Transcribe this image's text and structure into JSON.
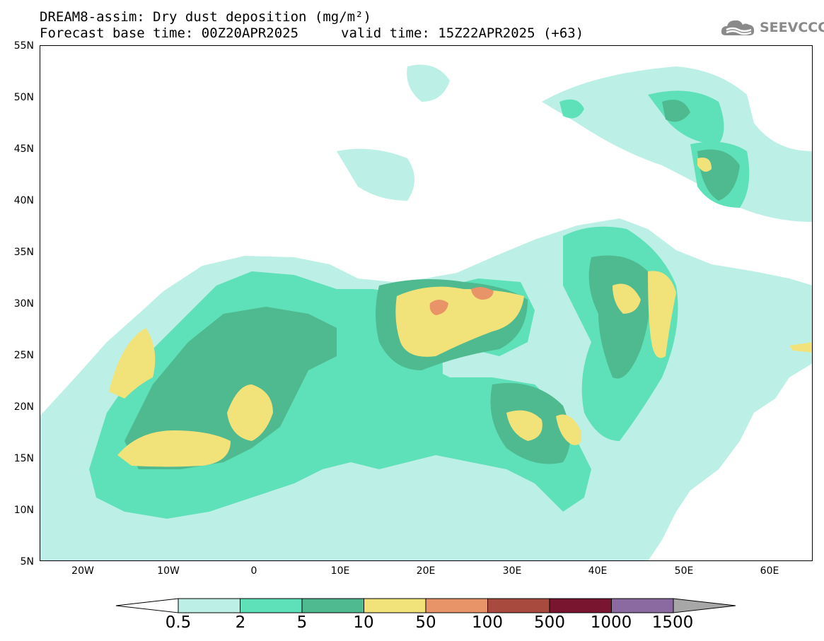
{
  "header": {
    "line1": "DREAM8-assim: Dry dust deposition (mg/m²)",
    "line2_base": "Forecast base time: 00Z20APR2025",
    "line2_valid": "valid time: 15Z22APR2025 (+63)"
  },
  "logo": {
    "text": "SEEVCCC",
    "icon": "cloud-icon"
  },
  "map": {
    "lat_labels": [
      "55N",
      "50N",
      "45N",
      "40N",
      "35N",
      "30N",
      "25N",
      "20N",
      "15N",
      "10N",
      "5N"
    ],
    "lon_labels": [
      "20W",
      "10W",
      "0",
      "10E",
      "20E",
      "30E",
      "40E",
      "50E",
      "60E"
    ],
    "extent": {
      "lon": [
        -25,
        65
      ],
      "lat": [
        5,
        55
      ]
    }
  },
  "colorbar": {
    "labels": [
      "0.5",
      "2",
      "5",
      "10",
      "50",
      "100",
      "500",
      "1000",
      "1500"
    ],
    "colors": [
      "#bcf0e6",
      "#5ee0b8",
      "#4fb98f",
      "#f2e27a",
      "#e89368",
      "#a84b3e",
      "#7a1530",
      "#8a6aa0"
    ],
    "under_color": "#ffffff",
    "over_color": "#a7a7a7"
  }
}
